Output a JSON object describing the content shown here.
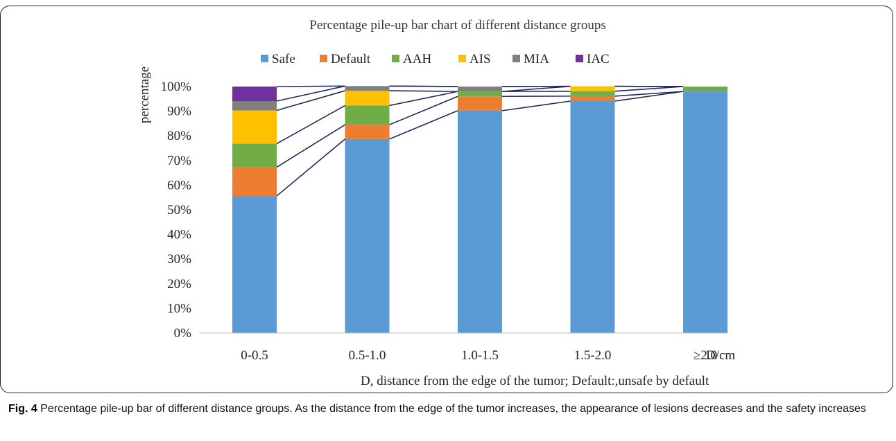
{
  "chart_data": {
    "type": "bar",
    "stacked": true,
    "percent_stacked": true,
    "title": "Percentage pile-up bar chart of different distance groups",
    "xlabel": "D/cm",
    "ylabel": "percentage",
    "note": "D, distance from the edge of the tumor; Default:,unsafe by default",
    "categories": [
      "0-0.5",
      "0.5-1.0",
      "1.0-1.5",
      "1.5-2.0",
      "≥2.0"
    ],
    "ylim": [
      0,
      100
    ],
    "yticks": [
      "0%",
      "10%",
      "20%",
      "30%",
      "40%",
      "50%",
      "60%",
      "70%",
      "80%",
      "90%",
      "100%"
    ],
    "legend_position": "top",
    "grid": false,
    "series_lines": true,
    "series": [
      {
        "name": "Safe",
        "color": "#5B9BD5",
        "values": [
          55.6,
          78.7,
          90.2,
          94.1,
          98.0
        ]
      },
      {
        "name": "Default",
        "color": "#ED7D31",
        "values": [
          11.7,
          5.8,
          5.8,
          2.0,
          0.0
        ]
      },
      {
        "name": "AAH",
        "color": "#70AD47",
        "values": [
          9.5,
          7.8,
          2.0,
          2.0,
          2.0
        ]
      },
      {
        "name": "AIS",
        "color": "#FFC000",
        "values": [
          13.5,
          6.0,
          0.0,
          2.0,
          0.0
        ]
      },
      {
        "name": "MIA",
        "color": "#7F7F7F",
        "values": [
          3.8,
          1.9,
          2.0,
          0.0,
          0.0
        ]
      },
      {
        "name": "IAC",
        "color": "#7030A0",
        "values": [
          5.9,
          0.0,
          0.0,
          0.0,
          0.0
        ]
      }
    ]
  },
  "caption": {
    "label": "Fig. 4",
    "text": "Percentage pile-up bar of different distance groups. As the distance from the edge of the tumor increases, the appearance of lesions decreases and the safety increases"
  }
}
